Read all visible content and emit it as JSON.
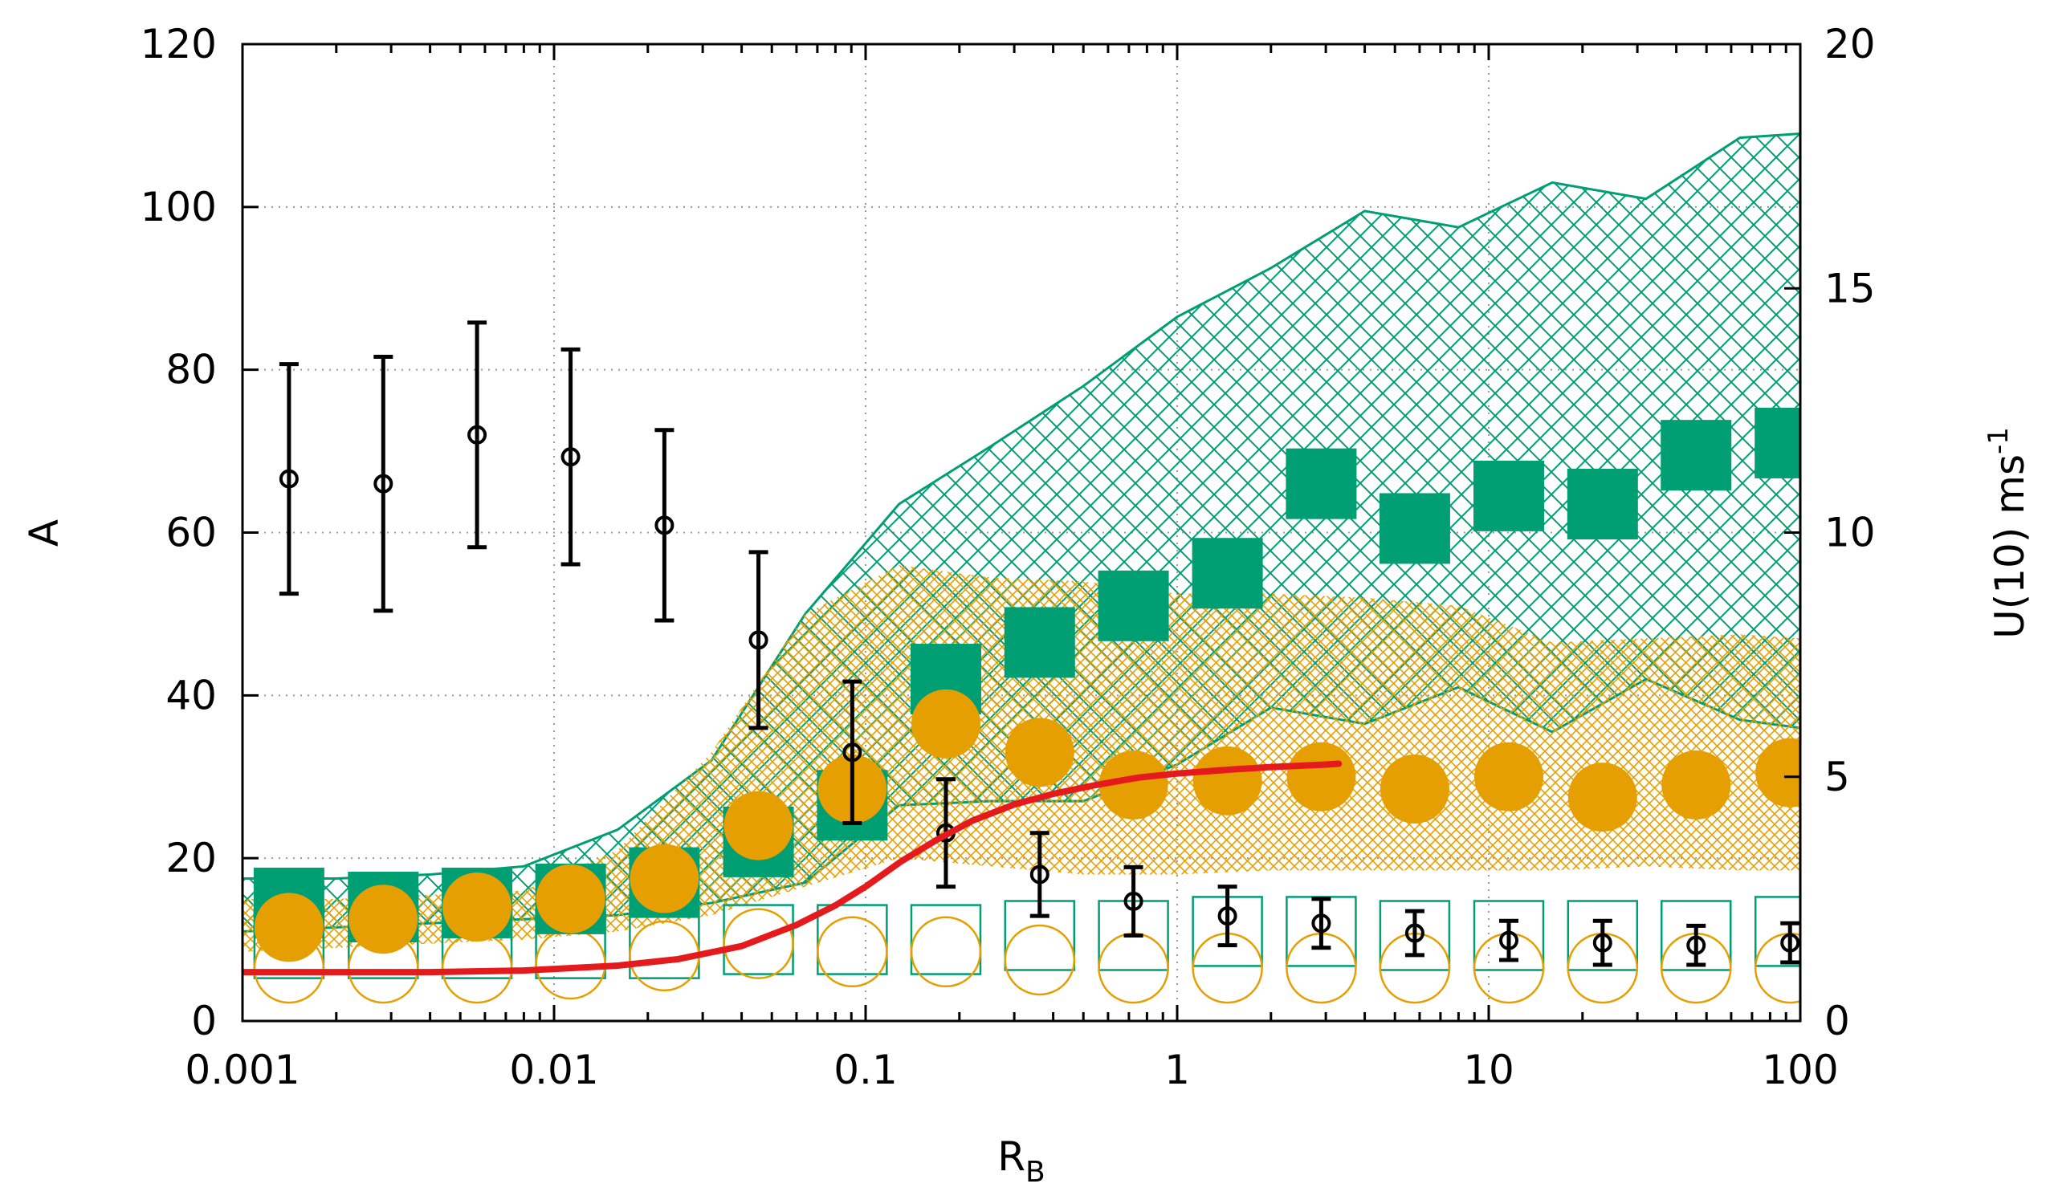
{
  "chart_data": {
    "type": "scatter",
    "xlabel": "R",
    "xlabel_sub": "B",
    "ylabel": "A",
    "y2label": "U(10) ms",
    "y2label_sup": "-1",
    "xscale": "log",
    "xlim": [
      0.001,
      100
    ],
    "ylim": [
      0,
      120
    ],
    "y2lim": [
      0,
      20
    ],
    "grid": true,
    "xticks": [
      {
        "v": 0.001,
        "label": "0.001"
      },
      {
        "v": 0.01,
        "label": "0.01"
      },
      {
        "v": 0.1,
        "label": "0.1"
      },
      {
        "v": 1,
        "label": "1"
      },
      {
        "v": 10,
        "label": "10"
      },
      {
        "v": 100,
        "label": "100"
      }
    ],
    "yticks": [
      {
        "v": 0,
        "label": "0"
      },
      {
        "v": 20,
        "label": "20"
      },
      {
        "v": 40,
        "label": "40"
      },
      {
        "v": 60,
        "label": "60"
      },
      {
        "v": 80,
        "label": "80"
      },
      {
        "v": 100,
        "label": "100"
      },
      {
        "v": 120,
        "label": "120"
      }
    ],
    "y2ticks": [
      {
        "v": 0,
        "label": "0"
      },
      {
        "v": 5,
        "label": "5"
      },
      {
        "v": 10,
        "label": "10"
      },
      {
        "v": 15,
        "label": "15"
      },
      {
        "v": 20,
        "label": "20"
      }
    ],
    "colors": {
      "green": "#009e73",
      "orange": "#e69f00",
      "black": "#000000",
      "red": "#e41a1c"
    },
    "green_band": {
      "x": [
        0.001,
        0.002,
        0.004,
        0.008,
        0.016,
        0.032,
        0.064,
        0.128,
        0.25,
        0.5,
        1,
        2,
        4,
        8,
        16,
        32,
        64,
        100
      ],
      "upper": [
        17.5,
        17.5,
        18.0,
        19.0,
        23.5,
        32.0,
        50.0,
        63.5,
        70.5,
        78.0,
        86.5,
        92.5,
        99.5,
        97.5,
        103.0,
        101.0,
        108.5,
        109.0
      ],
      "lower": [
        11.0,
        11.5,
        12.0,
        12.5,
        13.0,
        14.5,
        17.0,
        26.5,
        27.0,
        27.0,
        31.5,
        38.5,
        36.5,
        41.0,
        35.5,
        42.0,
        37.0,
        36.0
      ]
    },
    "orange_band": {
      "x": [
        0.001,
        0.002,
        0.004,
        0.008,
        0.016,
        0.032,
        0.064,
        0.128,
        0.25,
        0.5,
        1,
        2,
        4,
        8,
        16,
        32,
        64,
        100
      ],
      "upper": [
        15.0,
        15.0,
        15.5,
        16.0,
        21.0,
        33.0,
        50.0,
        56.0,
        54.5,
        54.0,
        52.5,
        52.5,
        52.0,
        51.0,
        46.5,
        47.0,
        47.5,
        47.0
      ],
      "lower": [
        8.5,
        9.0,
        9.5,
        10.0,
        11.0,
        13.0,
        16.5,
        20.0,
        19.0,
        18.0,
        18.0,
        18.5,
        18.5,
        18.5,
        18.5,
        19.0,
        18.5,
        18.5
      ]
    },
    "green_filled_squares": {
      "x": [
        0.00141,
        0.00283,
        0.00566,
        0.0113,
        0.0226,
        0.0453,
        0.0906,
        0.181,
        0.362,
        0.724,
        1.45,
        2.9,
        5.79,
        11.6,
        23.2,
        46.3,
        92.7
      ],
      "y": [
        14.5,
        14.0,
        14.5,
        15.0,
        17.0,
        22.0,
        26.5,
        42.0,
        46.5,
        51.0,
        55.0,
        66.0,
        60.5,
        64.5,
        63.5,
        69.5,
        71.0
      ]
    },
    "orange_filled_circles": {
      "x": [
        0.00141,
        0.00283,
        0.00566,
        0.0113,
        0.0226,
        0.0453,
        0.0906,
        0.181,
        0.362,
        0.724,
        1.45,
        2.9,
        5.79,
        11.6,
        23.2,
        46.3,
        92.7
      ],
      "y": [
        11.5,
        12.5,
        14.0,
        15.0,
        17.5,
        24.0,
        28.5,
        36.5,
        33.0,
        29.0,
        29.5,
        30.0,
        28.5,
        30.0,
        27.5,
        29.0,
        30.5
      ]
    },
    "green_open_squares": {
      "x": [
        0.00141,
        0.00283,
        0.00566,
        0.0113,
        0.0226,
        0.0453,
        0.0906,
        0.181,
        0.362,
        0.724,
        1.45,
        2.9,
        5.79,
        11.6,
        23.2,
        46.3,
        92.7
      ],
      "y": [
        9.5,
        9.5,
        9.5,
        9.5,
        9.5,
        10.0,
        10.0,
        10.0,
        10.5,
        10.5,
        11.0,
        11.0,
        10.5,
        10.5,
        10.5,
        10.5,
        11.0
      ]
    },
    "orange_open_circles": {
      "x": [
        0.00141,
        0.00283,
        0.00566,
        0.0113,
        0.0226,
        0.0453,
        0.0906,
        0.181,
        0.362,
        0.724,
        1.45,
        2.9,
        5.79,
        11.6,
        23.2,
        46.3,
        92.7
      ],
      "y": [
        6.5,
        6.5,
        6.5,
        7.0,
        8.0,
        9.5,
        8.5,
        8.5,
        7.5,
        6.5,
        6.5,
        6.5,
        6.5,
        6.5,
        6.5,
        6.5,
        6.5
      ]
    },
    "wind_speed_errorbars": {
      "axis": "y2",
      "x": [
        0.00141,
        0.00283,
        0.00566,
        0.0113,
        0.0226,
        0.0453,
        0.0906,
        0.181,
        0.362,
        0.724,
        1.45,
        2.9,
        5.79,
        11.6,
        23.2,
        46.3,
        92.7
      ],
      "y": [
        11.1,
        11.0,
        12.0,
        11.55,
        10.15,
        7.8,
        5.5,
        3.85,
        3.0,
        2.45,
        2.15,
        2.0,
        1.8,
        1.65,
        1.6,
        1.55,
        1.6
      ],
      "err": [
        2.35,
        2.6,
        2.3,
        2.2,
        1.95,
        1.8,
        1.45,
        1.1,
        0.85,
        0.7,
        0.6,
        0.5,
        0.45,
        0.4,
        0.45,
        0.4,
        0.4
      ]
    },
    "red_curve": {
      "x": [
        0.001,
        0.002,
        0.004,
        0.008,
        0.016,
        0.025,
        0.04,
        0.06,
        0.08,
        0.1,
        0.13,
        0.17,
        0.22,
        0.3,
        0.4,
        0.55,
        0.75,
        1.0,
        1.5,
        2.0,
        3.0,
        3.3
      ],
      "y": [
        6.0,
        6.0,
        6.0,
        6.2,
        6.8,
        7.6,
        9.2,
        11.8,
        14.2,
        16.5,
        19.6,
        22.3,
        24.6,
        26.6,
        27.9,
        29.0,
        29.9,
        30.4,
        30.9,
        31.2,
        31.5,
        31.6
      ]
    }
  }
}
